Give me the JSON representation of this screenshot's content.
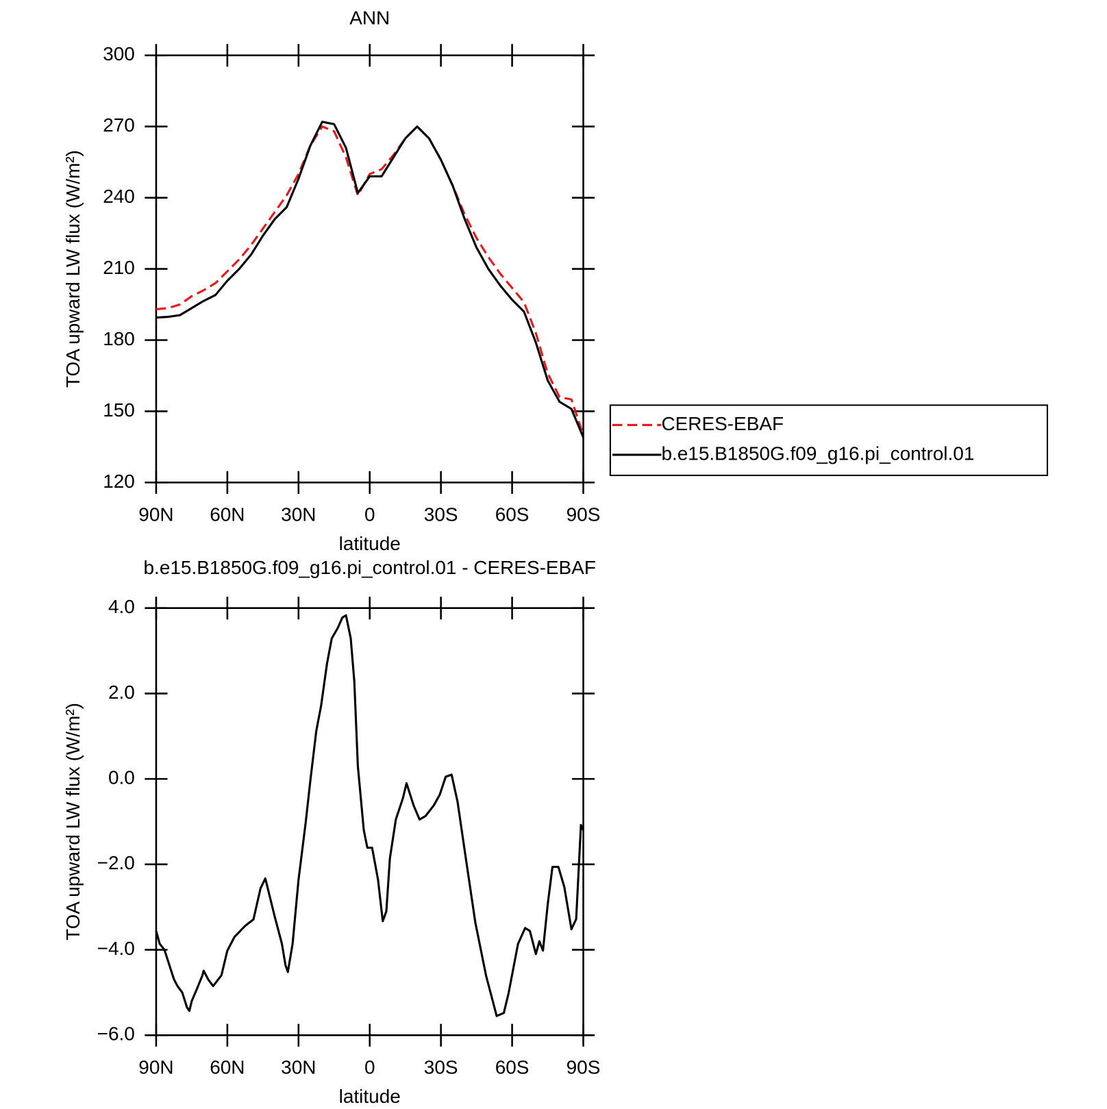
{
  "chart_data": [
    {
      "type": "line",
      "title": "ANN",
      "xlabel": "latitude",
      "ylabel": "TOA upward LW flux (W/m²)",
      "x": [
        90,
        85,
        80,
        75,
        70,
        65,
        60,
        55,
        50,
        45,
        40,
        35,
        30,
        25,
        20,
        15,
        10,
        5,
        0,
        -5,
        -10,
        -15,
        -20,
        -25,
        -30,
        -35,
        -40,
        -45,
        -50,
        -55,
        -60,
        -65,
        -70,
        -75,
        -80,
        -85,
        -90
      ],
      "series": [
        {
          "name": "CERES-EBAF",
          "color": "#e41a1c",
          "line_style": "dashed",
          "values": [
            193,
            193.5,
            195,
            198.5,
            201,
            204,
            209,
            214,
            220,
            227,
            234,
            241,
            250,
            262,
            270,
            268,
            257,
            241,
            250,
            252,
            258,
            265,
            270,
            265,
            256,
            245,
            233,
            223,
            215,
            208,
            202,
            196,
            183,
            166,
            156,
            155,
            140
          ]
        },
        {
          "name": "b.e15.B1850G.f09_g16.pi_control.01",
          "color": "#000000",
          "line_style": "solid",
          "values": [
            189.5,
            189.8,
            190.5,
            193.5,
            196.5,
            199,
            205,
            210,
            216,
            224,
            231,
            236,
            248,
            262,
            272,
            271,
            261,
            242,
            249,
            249,
            257,
            265,
            270,
            265,
            256,
            245,
            231,
            219,
            210,
            203,
            197,
            192,
            179,
            163,
            154,
            151,
            139
          ]
        }
      ],
      "xlim": [
        90,
        -90
      ],
      "xticks": [
        {
          "value": 90,
          "label": "90N"
        },
        {
          "value": 60,
          "label": "60N"
        },
        {
          "value": 30,
          "label": "30N"
        },
        0,
        {
          "value": -30,
          "label": "30S"
        },
        {
          "value": -60,
          "label": "60S"
        },
        {
          "value": -90,
          "label": "90S"
        }
      ],
      "ylim": [
        120,
        300
      ],
      "yticks": [
        120,
        150,
        180,
        210,
        240,
        270,
        300
      ],
      "legend": "right",
      "grid": false
    },
    {
      "type": "line",
      "title": "b.e15.B1850G.f09_g16.pi_control.01 - CERES-EBAF",
      "xlabel": "latitude",
      "ylabel": "TOA upward LW flux (W/m²)",
      "x": [
        90,
        88.5,
        86.5,
        82.5,
        81,
        79,
        77,
        76,
        75,
        73,
        70.5,
        70,
        68,
        66,
        62.5,
        60,
        57,
        52.5,
        49,
        46,
        44,
        40,
        37,
        35.5,
        34.5,
        32.5,
        30,
        27,
        25,
        22.5,
        20.5,
        18,
        16,
        13.5,
        11.5,
        10,
        8,
        6.5,
        5,
        2.5,
        1,
        -1,
        -3.5,
        -5.5,
        -7,
        -8.5,
        -11,
        -14,
        -15.5,
        -18.5,
        -21,
        -23.5,
        -27,
        -29.5,
        -32,
        -34.5,
        -37,
        -40.5,
        -44.5,
        -49,
        -53.5,
        -56.5,
        -58.5,
        -62.5,
        -65.5,
        -67.5,
        -70,
        -71.5,
        -73,
        -75,
        -77,
        -79.5,
        -82,
        -85,
        -87,
        -89,
        -90
      ],
      "series": [
        {
          "name": "b.e15.B1850G.f09_g16.pi_control.01",
          "color": "#000000",
          "line_style": "solid",
          "values": [
            -3.56,
            -3.86,
            -4.0,
            -4.69,
            -4.85,
            -5.0,
            -5.35,
            -5.43,
            -5.2,
            -4.94,
            -4.6,
            -4.49,
            -4.7,
            -4.85,
            -4.6,
            -4.02,
            -3.7,
            -3.44,
            -3.29,
            -2.56,
            -2.33,
            -3.23,
            -3.86,
            -4.36,
            -4.52,
            -3.86,
            -2.36,
            -1.03,
            -0.03,
            1.13,
            1.71,
            2.7,
            3.29,
            3.53,
            3.78,
            3.83,
            3.29,
            2.29,
            0.3,
            -1.2,
            -1.61,
            -1.61,
            -2.36,
            -3.33,
            -3.1,
            -1.86,
            -0.95,
            -0.45,
            -0.1,
            -0.62,
            -0.95,
            -0.87,
            -0.62,
            -0.37,
            0.05,
            0.1,
            -0.53,
            -1.86,
            -3.36,
            -4.6,
            -5.55,
            -5.48,
            -5.02,
            -3.86,
            -3.49,
            -3.56,
            -4.1,
            -3.8,
            -4.02,
            -2.94,
            -2.06,
            -2.06,
            -2.53,
            -3.52,
            -3.28,
            -1.08,
            -1.2
          ]
        }
      ],
      "xlim": [
        90,
        -90
      ],
      "xticks": [
        {
          "value": 90,
          "label": "90N"
        },
        {
          "value": 60,
          "label": "60N"
        },
        {
          "value": 30,
          "label": "30N"
        },
        0,
        {
          "value": -30,
          "label": "30S"
        },
        {
          "value": -60,
          "label": "60S"
        },
        {
          "value": -90,
          "label": "90S"
        }
      ],
      "ylim": [
        -6,
        4
      ],
      "yticks": [
        {
          "value": -6,
          "label": "−6.0"
        },
        {
          "value": -4,
          "label": "−4.0"
        },
        {
          "value": -2,
          "label": "−2.0"
        },
        {
          "value": 0,
          "label": "0.0"
        },
        {
          "value": 2,
          "label": "2.0"
        },
        {
          "value": 4,
          "label": "4.0"
        }
      ],
      "grid": false
    }
  ]
}
